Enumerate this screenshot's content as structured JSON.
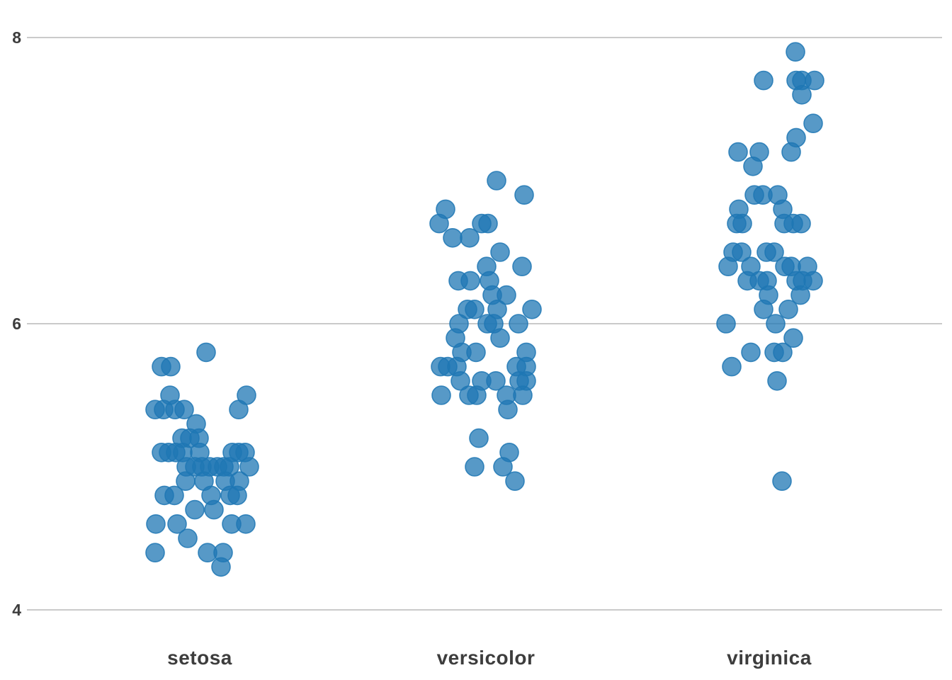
{
  "chart_data": {
    "type": "scatter",
    "subtype": "jittered-strip-plot",
    "title": "",
    "xlabel": "",
    "ylabel": "",
    "grid": "horizontal",
    "legend": "none",
    "ylim": [
      4,
      8
    ],
    "yticks": [
      {
        "value": 8,
        "label": "8"
      },
      {
        "value": 6,
        "label": "6"
      },
      {
        "value": 4,
        "label": "4"
      }
    ],
    "categories": [
      "setosa",
      "versicolor",
      "virginica"
    ],
    "marker": {
      "color": "#1f77b4",
      "fill_opacity": 0.75,
      "stroke_opacity": 0.85,
      "radius_px": 13
    },
    "gridline_color": "#b8b8b8",
    "label_color": "#3d3d3d",
    "series": [
      {
        "name": "setosa",
        "values": [
          5.1,
          4.9,
          4.7,
          4.6,
          5.0,
          5.4,
          4.6,
          5.0,
          4.4,
          4.9,
          5.4,
          4.8,
          4.8,
          4.3,
          5.8,
          5.7,
          5.4,
          5.1,
          5.7,
          5.1,
          5.4,
          5.1,
          4.6,
          5.1,
          4.8,
          5.0,
          5.0,
          5.2,
          5.2,
          4.7,
          4.8,
          5.4,
          5.2,
          5.5,
          4.9,
          5.0,
          5.5,
          4.9,
          4.4,
          5.1,
          5.0,
          4.5,
          4.4,
          5.0,
          5.1,
          4.8,
          5.1,
          4.6,
          5.3,
          5.0
        ],
        "points": [
          [
            291,
            5.8
          ],
          [
            228,
            5.7
          ],
          [
            241,
            5.7
          ],
          [
            240,
            5.5
          ],
          [
            348,
            5.5
          ],
          [
            219,
            5.4
          ],
          [
            231,
            5.4
          ],
          [
            247,
            5.4
          ],
          [
            260,
            5.4
          ],
          [
            337,
            5.4
          ],
          [
            277,
            5.3
          ],
          [
            257,
            5.2
          ],
          [
            268,
            5.2
          ],
          [
            281,
            5.2
          ],
          [
            228,
            5.1
          ],
          [
            238,
            5.1
          ],
          [
            248,
            5.1
          ],
          [
            258,
            5.1
          ],
          [
            282,
            5.1
          ],
          [
            328,
            5.1
          ],
          [
            337,
            5.1
          ],
          [
            346,
            5.1
          ],
          [
            263,
            5.0
          ],
          [
            275,
            5.0
          ],
          [
            285,
            5.0
          ],
          [
            296,
            5.0
          ],
          [
            307,
            5.0
          ],
          [
            316,
            5.0
          ],
          [
            324,
            5.0
          ],
          [
            352,
            5.0
          ],
          [
            262,
            4.9
          ],
          [
            288,
            4.9
          ],
          [
            318,
            4.9
          ],
          [
            338,
            4.9
          ],
          [
            232,
            4.8
          ],
          [
            246,
            4.8
          ],
          [
            298,
            4.8
          ],
          [
            325,
            4.8
          ],
          [
            335,
            4.8
          ],
          [
            275,
            4.7
          ],
          [
            302,
            4.7
          ],
          [
            220,
            4.6
          ],
          [
            250,
            4.6
          ],
          [
            327,
            4.6
          ],
          [
            347,
            4.6
          ],
          [
            265,
            4.5
          ],
          [
            219,
            4.4
          ],
          [
            293,
            4.4
          ],
          [
            315,
            4.4
          ],
          [
            312,
            4.3
          ]
        ]
      },
      {
        "name": "versicolor",
        "values": [
          7.0,
          6.4,
          6.9,
          5.5,
          6.5,
          5.7,
          6.3,
          4.9,
          6.6,
          5.2,
          5.0,
          5.9,
          6.0,
          6.1,
          5.6,
          6.7,
          5.6,
          5.8,
          6.2,
          5.6,
          5.9,
          6.1,
          6.3,
          6.1,
          6.4,
          6.6,
          6.8,
          6.7,
          6.0,
          5.7,
          5.5,
          5.5,
          5.8,
          6.0,
          5.4,
          6.0,
          6.7,
          6.3,
          5.6,
          5.5,
          5.5,
          6.1,
          5.8,
          5.0,
          5.6,
          5.7,
          5.7,
          6.2,
          5.1,
          5.7
        ],
        "points": [
          [
            701,
            7.0
          ],
          [
            740,
            6.9
          ],
          [
            629,
            6.8
          ],
          [
            620,
            6.7
          ],
          [
            680,
            6.7
          ],
          [
            689,
            6.7
          ],
          [
            639,
            6.6
          ],
          [
            663,
            6.6
          ],
          [
            706,
            6.5
          ],
          [
            687,
            6.4
          ],
          [
            737,
            6.4
          ],
          [
            647,
            6.3
          ],
          [
            664,
            6.3
          ],
          [
            691,
            6.3
          ],
          [
            695,
            6.2
          ],
          [
            715,
            6.2
          ],
          [
            660,
            6.1
          ],
          [
            670,
            6.1
          ],
          [
            702,
            6.1
          ],
          [
            751,
            6.1
          ],
          [
            648,
            6.0
          ],
          [
            688,
            6.0
          ],
          [
            697,
            6.0
          ],
          [
            732,
            6.0
          ],
          [
            643,
            5.9
          ],
          [
            706,
            5.9
          ],
          [
            652,
            5.8
          ],
          [
            672,
            5.8
          ],
          [
            743,
            5.8
          ],
          [
            622,
            5.7
          ],
          [
            632,
            5.7
          ],
          [
            645,
            5.7
          ],
          [
            729,
            5.7
          ],
          [
            743,
            5.7
          ],
          [
            650,
            5.6
          ],
          [
            680,
            5.6
          ],
          [
            700,
            5.6
          ],
          [
            733,
            5.6
          ],
          [
            743,
            5.6
          ],
          [
            623,
            5.5
          ],
          [
            662,
            5.5
          ],
          [
            673,
            5.5
          ],
          [
            715,
            5.5
          ],
          [
            738,
            5.5
          ],
          [
            717,
            5.4
          ],
          [
            676,
            5.2
          ],
          [
            719,
            5.1
          ],
          [
            670,
            5.0
          ],
          [
            710,
            5.0
          ],
          [
            727,
            4.9
          ]
        ]
      },
      {
        "name": "virginica",
        "values": [
          6.3,
          5.8,
          7.1,
          6.3,
          6.5,
          7.6,
          4.9,
          7.3,
          6.7,
          7.2,
          6.5,
          6.4,
          6.8,
          5.7,
          5.8,
          6.4,
          6.5,
          7.7,
          7.7,
          6.0,
          6.9,
          5.6,
          7.7,
          6.3,
          6.7,
          7.2,
          6.2,
          6.1,
          6.4,
          7.2,
          7.4,
          7.9,
          6.4,
          6.3,
          6.1,
          7.7,
          6.3,
          6.4,
          6.0,
          6.9,
          6.7,
          6.9,
          5.8,
          6.8,
          6.7,
          6.7,
          6.3,
          6.5,
          6.2,
          5.9
        ],
        "points": [
          [
            1123,
            7.9
          ],
          [
            1078,
            7.7
          ],
          [
            1124,
            7.7
          ],
          [
            1132,
            7.7
          ],
          [
            1150,
            7.7
          ],
          [
            1132,
            7.6
          ],
          [
            1148,
            7.4
          ],
          [
            1124,
            7.3
          ],
          [
            1042,
            7.2
          ],
          [
            1072,
            7.2
          ],
          [
            1117,
            7.2
          ],
          [
            1063,
            7.1
          ],
          [
            1065,
            6.9
          ],
          [
            1077,
            6.9
          ],
          [
            1098,
            6.9
          ],
          [
            1043,
            6.8
          ],
          [
            1105,
            6.8
          ],
          [
            1040,
            6.7
          ],
          [
            1048,
            6.7
          ],
          [
            1107,
            6.7
          ],
          [
            1120,
            6.7
          ],
          [
            1131,
            6.7
          ],
          [
            1035,
            6.5
          ],
          [
            1047,
            6.5
          ],
          [
            1082,
            6.5
          ],
          [
            1093,
            6.5
          ],
          [
            1028,
            6.4
          ],
          [
            1060,
            6.4
          ],
          [
            1108,
            6.4
          ],
          [
            1117,
            6.4
          ],
          [
            1140,
            6.4
          ],
          [
            1055,
            6.3
          ],
          [
            1072,
            6.3
          ],
          [
            1083,
            6.3
          ],
          [
            1124,
            6.3
          ],
          [
            1133,
            6.3
          ],
          [
            1148,
            6.3
          ],
          [
            1085,
            6.2
          ],
          [
            1130,
            6.2
          ],
          [
            1078,
            6.1
          ],
          [
            1113,
            6.1
          ],
          [
            1025,
            6.0
          ],
          [
            1095,
            6.0
          ],
          [
            1120,
            5.9
          ],
          [
            1060,
            5.8
          ],
          [
            1093,
            5.8
          ],
          [
            1105,
            5.8
          ],
          [
            1033,
            5.7
          ],
          [
            1097,
            5.6
          ],
          [
            1104,
            4.9
          ]
        ]
      }
    ]
  }
}
